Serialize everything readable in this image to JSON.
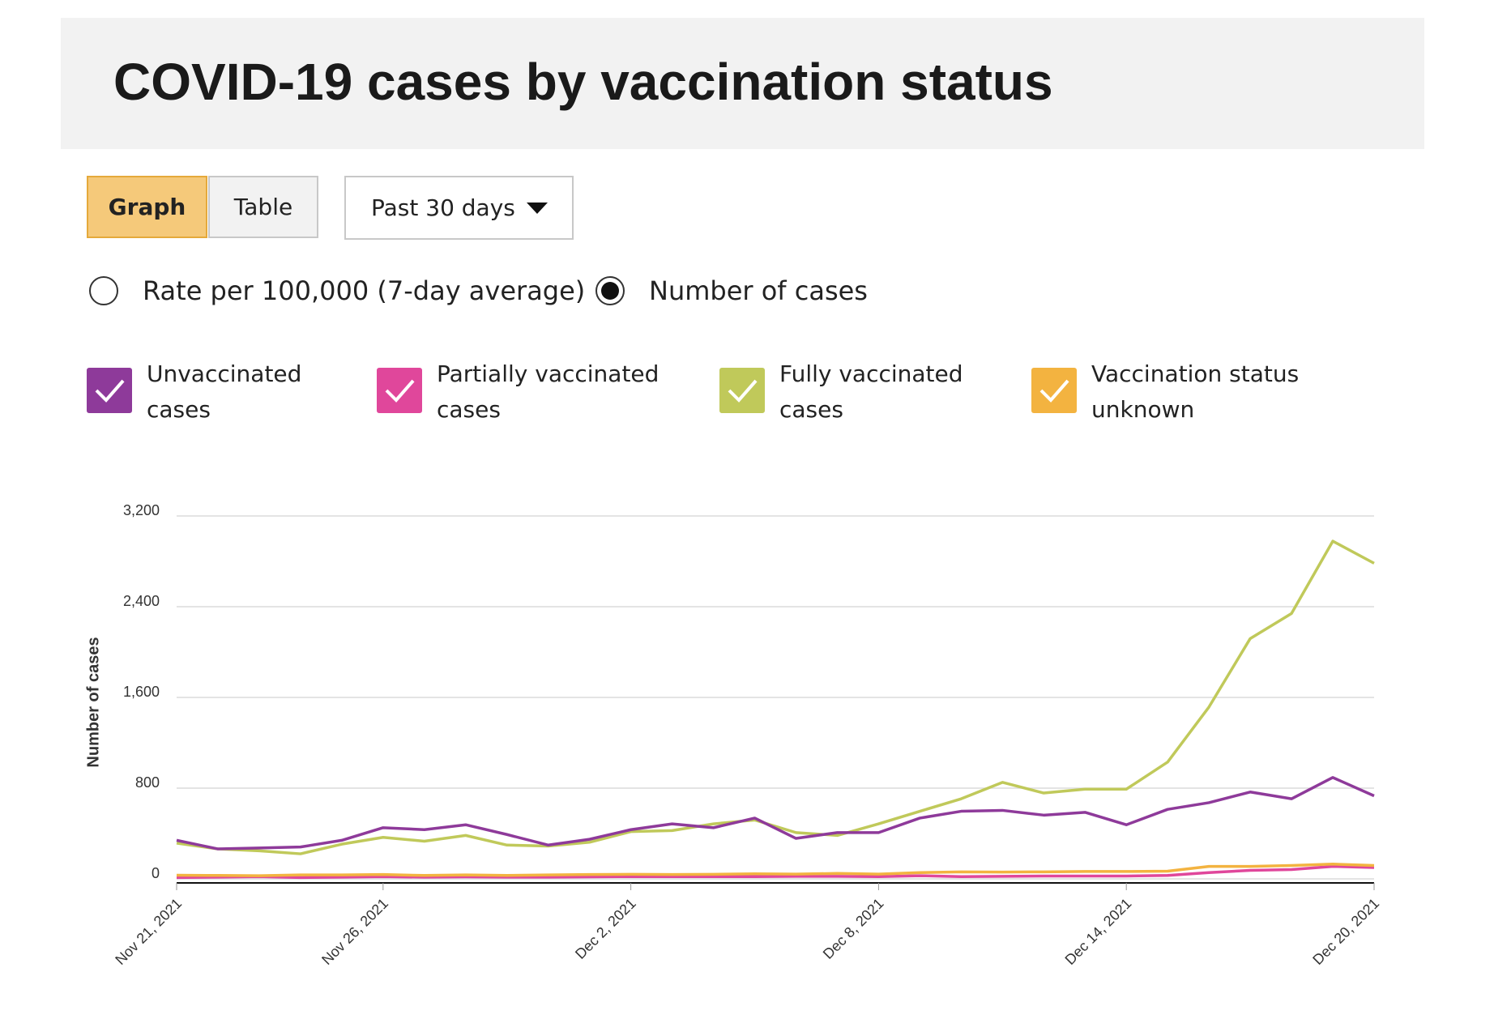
{
  "controls": {
    "views": [
      "Graph",
      "Table"
    ],
    "active_view": 0,
    "range": "Past 30 days",
    "modes": [
      "Rate per 100,000 (7-day average)",
      "Number of cases"
    ],
    "active_mode": 1
  },
  "chart_data": {
    "type": "line",
    "title": "COVID-19 cases by vaccination status",
    "y_label": "Number of cases",
    "categories": [
      "Nov 21, 2021",
      null,
      null,
      null,
      null,
      "Nov 26, 2021",
      null,
      null,
      null,
      null,
      null,
      "Dec 2, 2021",
      null,
      null,
      null,
      null,
      null,
      "Dec 8, 2021",
      null,
      null,
      null,
      null,
      null,
      "Dec 14, 2021",
      null,
      null,
      null,
      null,
      null,
      "Dec 20, 2021"
    ],
    "ylim": [
      0,
      3200
    ],
    "yticks": [
      0,
      {
        "value": 800,
        "label": "800"
      },
      {
        "value": 1600,
        "label": "1,600"
      },
      {
        "value": 2400,
        "label": "2,400"
      },
      {
        "value": 3200,
        "label": "3,200"
      }
    ],
    "grid": true,
    "series": [
      {
        "name": "Unvaccinated cases",
        "color": "#8e3a9a",
        "values": [
          340,
          264,
          272,
          281,
          340,
          451,
          434,
          477,
          391,
          298,
          349,
          434,
          485,
          451,
          536,
          357,
          408,
          408,
          536,
          596,
          604,
          562,
          587,
          477,
          613,
          672,
          766,
          706,
          894,
          732
        ]
      },
      {
        "name": "Partially vaccinated cases",
        "color": "#e0479b",
        "values": [
          12,
          15,
          20,
          12,
          15,
          20,
          15,
          18,
          15,
          15,
          18,
          20,
          20,
          20,
          20,
          22,
          22,
          20,
          28,
          20,
          22,
          25,
          25,
          25,
          30,
          55,
          75,
          82,
          110,
          100
        ]
      },
      {
        "name": "Fully vaccinated cases",
        "color": "#c0c95a",
        "values": [
          315,
          264,
          247,
          221,
          306,
          366,
          332,
          383,
          298,
          289,
          323,
          417,
          426,
          485,
          519,
          408,
          383,
          485,
          596,
          706,
          851,
          757,
          791,
          791,
          1030,
          1515,
          2119,
          2340,
          2978,
          2783
        ]
      },
      {
        "name": "Vaccination status unknown",
        "color": "#f3b340",
        "values": [
          32,
          30,
          28,
          35,
          35,
          38,
          30,
          35,
          30,
          35,
          38,
          40,
          38,
          40,
          45,
          42,
          48,
          42,
          55,
          62,
          60,
          62,
          65,
          65,
          68,
          110,
          110,
          118,
          130,
          118
        ]
      }
    ]
  }
}
